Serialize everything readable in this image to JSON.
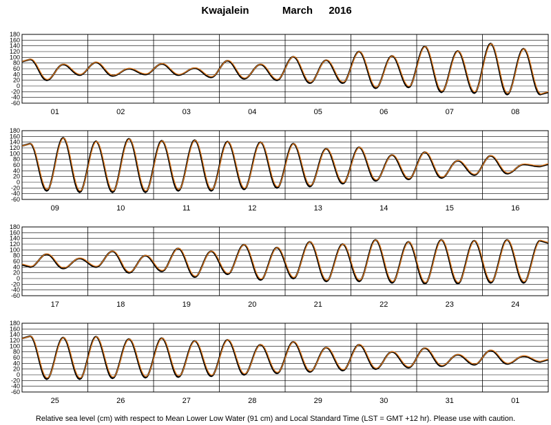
{
  "header": {
    "station": "Kwajalein",
    "month": "March",
    "year": "2016"
  },
  "caption": "Relative sea level (cm) with respect to Mean Lower Low Water (91 cm) and Local Standard Time (LST = GMT +12 hr). Please use with caution.",
  "colors": {
    "observed": "#000000",
    "predicted": "#e07b20",
    "grid": "#000000"
  },
  "chart_data": {
    "type": "line",
    "title": "Kwajalein March 2016",
    "ylim": [
      -60,
      180
    ],
    "yticks": [
      "180",
      "160",
      "140",
      "120",
      "100",
      "80",
      "60",
      "40",
      "20",
      "0",
      "-20",
      "-40",
      "-60"
    ],
    "grid": true,
    "legend": "none",
    "series": [
      {
        "key": "observed"
      },
      {
        "key": "predicted"
      }
    ],
    "panels": [
      {
        "days": [
          "01",
          "02",
          "03",
          "04",
          "05",
          "06",
          "07",
          "08"
        ],
        "high_low": [
          [
            [
              55,
              93
            ],
            [
              70,
              20
            ],
            [
              5,
              75
            ],
            [
              60,
              38
            ]
          ],
          [
            [
              10,
              82
            ],
            [
              75,
              35
            ],
            [
              35,
              60
            ],
            [
              40,
              40
            ]
          ],
          [
            [
              15,
              77
            ],
            [
              60,
              38
            ],
            [
              40,
              62
            ],
            [
              40,
              30
            ]
          ],
          [
            [
              0,
              88
            ],
            [
              75,
              25
            ],
            [
              25,
              75
            ],
            [
              45,
              20
            ]
          ],
          [
            [
              15,
              102
            ],
            [
              80,
              10
            ],
            [
              15,
              90
            ],
            [
              45,
              10
            ]
          ],
          [
            [
              15,
              120
            ],
            [
              80,
              -8
            ],
            [
              20,
              105
            ],
            [
              40,
              -5
            ]
          ],
          [
            [
              20,
              138
            ],
            [
              85,
              -22
            ],
            [
              25,
              122
            ],
            [
              45,
              -25
            ]
          ],
          [
            [
              20,
              148
            ],
            [
              90,
              -30
            ],
            [
              25,
              130
            ],
            [
              50,
              -30
            ]
          ]
        ]
      },
      {
        "days": [
          "09",
          "10",
          "11",
          "12",
          "13",
          "14",
          "15",
          "16"
        ],
        "high_low": [
          [
            [
              25,
              135
            ],
            [
              90,
              -30
            ],
            [
              30,
              155
            ],
            [
              35,
              -35
            ]
          ],
          [
            [
              25,
              143
            ],
            [
              95,
              -35
            ],
            [
              30,
              152
            ],
            [
              35,
              -35
            ]
          ],
          [
            [
              25,
              145
            ],
            [
              95,
              -30
            ],
            [
              30,
              147
            ],
            [
              35,
              -30
            ]
          ],
          [
            [
              25,
              142
            ],
            [
              95,
              -25
            ],
            [
              30,
              140
            ],
            [
              40,
              -20
            ]
          ],
          [
            [
              25,
              135
            ],
            [
              95,
              -15
            ],
            [
              30,
              117
            ],
            [
              40,
              -5
            ]
          ],
          [
            [
              30,
              122
            ],
            [
              100,
              5
            ],
            [
              30,
              95
            ],
            [
              45,
              10
            ]
          ],
          [
            [
              30,
              105
            ],
            [
              100,
              15
            ],
            [
              35,
              75
            ],
            [
              45,
              25
            ]
          ],
          [
            [
              35,
              92
            ],
            [
              100,
              30
            ],
            [
              40,
              62
            ],
            [
              40,
              55
            ]
          ]
        ]
      },
      {
        "days": [
          "17",
          "18",
          "19",
          "20",
          "21",
          "22",
          "23",
          "24"
        ],
        "high_low": [
          [
            [
              60,
              40
            ],
            [
              40,
              85
            ],
            [
              100,
              35
            ],
            [
              40,
              70
            ]
          ],
          [
            [
              40,
              40
            ],
            [
              40,
              95
            ],
            [
              100,
              20
            ],
            [
              35,
              80
            ]
          ],
          [
            [
              40,
              25
            ],
            [
              40,
              105
            ],
            [
              100,
              5
            ],
            [
              35,
              95
            ]
          ],
          [
            [
              40,
              15
            ],
            [
              40,
              118
            ],
            [
              100,
              -5
            ],
            [
              35,
              108
            ]
          ],
          [
            [
              40,
              0
            ],
            [
              40,
              128
            ],
            [
              95,
              -10
            ],
            [
              30,
              120
            ]
          ],
          [
            [
              40,
              -10
            ],
            [
              40,
              135
            ],
            [
              95,
              -15
            ],
            [
              30,
              128
            ]
          ],
          [
            [
              45,
              -18
            ],
            [
              40,
              135
            ],
            [
              95,
              -18
            ],
            [
              30,
              132
            ]
          ],
          [
            [
              45,
              -15
            ],
            [
              40,
              135
            ],
            [
              95,
              -15
            ],
            [
              30,
              132
            ]
          ]
        ]
      },
      {
        "days": [
          "25",
          "26",
          "27",
          "28",
          "29",
          "30",
          "31",
          "01"
        ],
        "high_low": [
          [
            [
              25,
              135
            ],
            [
              90,
              -15
            ],
            [
              30,
              130
            ],
            [
              40,
              -15
            ]
          ],
          [
            [
              25,
              133
            ],
            [
              90,
              -12
            ],
            [
              30,
              125
            ],
            [
              40,
              -10
            ]
          ],
          [
            [
              25,
              128
            ],
            [
              90,
              -8
            ],
            [
              30,
              118
            ],
            [
              40,
              -5
            ]
          ],
          [
            [
              25,
              122
            ],
            [
              90,
              0
            ],
            [
              30,
              105
            ],
            [
              40,
              5
            ]
          ],
          [
            [
              25,
              115
            ],
            [
              90,
              10
            ],
            [
              30,
              95
            ],
            [
              40,
              15
            ]
          ],
          [
            [
              25,
              105
            ],
            [
              95,
              20
            ],
            [
              30,
              80
            ],
            [
              40,
              25
            ]
          ],
          [
            [
              25,
              93
            ],
            [
              95,
              30
            ],
            [
              30,
              70
            ],
            [
              40,
              35
            ]
          ],
          [
            [
              25,
              85
            ],
            [
              95,
              38
            ],
            [
              30,
              65
            ],
            [
              40,
              45
            ]
          ]
        ]
      }
    ]
  }
}
